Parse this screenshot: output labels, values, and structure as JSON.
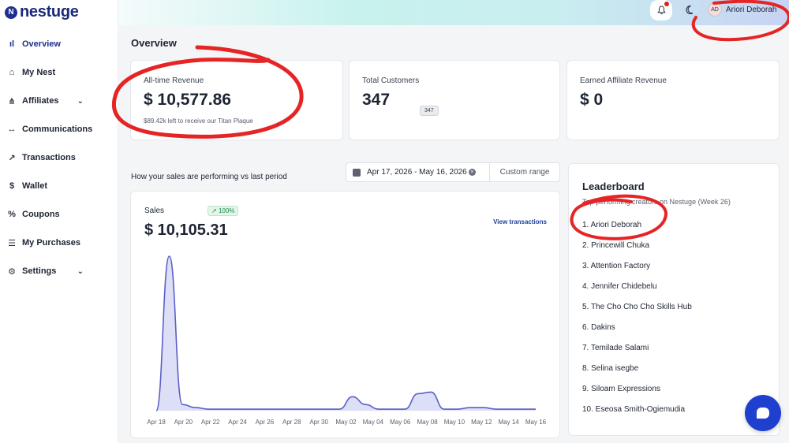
{
  "brand": {
    "logo_mark": "N",
    "name": "nestuge"
  },
  "nav": [
    {
      "label": "Overview",
      "icon": "bar-chart-icon",
      "glyph": "ıl",
      "active": true,
      "chevron": false
    },
    {
      "label": "My Nest",
      "icon": "nest-icon",
      "glyph": "⌂",
      "active": false,
      "chevron": false
    },
    {
      "label": "Affiliates",
      "icon": "affiliates-icon",
      "glyph": "⋔",
      "active": false,
      "chevron": true
    },
    {
      "label": "Communications",
      "icon": "arrows-icon",
      "glyph": "↔",
      "active": false,
      "chevron": false
    },
    {
      "label": "Transactions",
      "icon": "trend-icon",
      "glyph": "↗",
      "active": false,
      "chevron": false
    },
    {
      "label": "Wallet",
      "icon": "wallet-icon",
      "glyph": "$",
      "active": false,
      "chevron": false
    },
    {
      "label": "Coupons",
      "icon": "percent-icon",
      "glyph": "%",
      "active": false,
      "chevron": false
    },
    {
      "label": "My Purchases",
      "icon": "list-icon",
      "glyph": "☰",
      "active": false,
      "chevron": false
    },
    {
      "label": "Settings",
      "icon": "gear-icon",
      "glyph": "⚙",
      "active": false,
      "chevron": true
    }
  ],
  "header": {
    "user_name": "Ariori Deborah",
    "avatar_initials": "AD"
  },
  "page": {
    "title": "Overview"
  },
  "stats": {
    "revenue": {
      "label": "All-time Revenue",
      "value": "$ 10,577.86",
      "sub": "$89.42k left to receive our Titan Plaque"
    },
    "customers": {
      "label": "Total Customers",
      "value": "347",
      "badge": "347"
    },
    "affiliate": {
      "label": "Earned Affiliate Revenue",
      "value": "$ 0"
    }
  },
  "performance": {
    "text": "How your sales are performing vs last period",
    "date_range": "Apr 17, 2026 - May 16, 2026",
    "custom_range": "Custom range"
  },
  "sales_card": {
    "label": "Sales",
    "change": "100%",
    "value": "$ 10,105.31",
    "view_link": "View transactions"
  },
  "chart_data": {
    "type": "area",
    "ticks": [
      "Apr 18",
      "Apr 20",
      "Apr 22",
      "Apr 24",
      "Apr 26",
      "Apr 28",
      "Apr 30",
      "May 02",
      "May 04",
      "May 06",
      "May 08",
      "May 10",
      "May 12",
      "May 14",
      "May 16"
    ],
    "values": [
      0,
      1,
      0.04,
      0.02,
      0.01,
      0.01,
      0.01,
      0.01,
      0.01,
      0.01,
      0.01,
      0.01,
      0.01,
      0.01,
      0.01,
      0.09,
      0.04,
      0.01,
      0.01,
      0.01,
      0.11,
      0.12,
      0.01,
      0.01,
      0.02,
      0.02,
      0.01,
      0.01,
      0.01,
      0.01
    ],
    "ymax": 1,
    "color": "#5b5fc7",
    "fill": "#cfd1f4"
  },
  "leaderboard": {
    "title": "Leaderboard",
    "subtitle": "Top-performing creators on Nestuge (Week 26)",
    "items": [
      "1. Ariori Deborah",
      "2. Princewill Chuka",
      "3. Attention Factory",
      "4. Jennifer Chidebelu",
      "5. The Cho Cho Cho Skills Hub",
      "6. Dakins",
      "7. Temilade Salami",
      "8. Selina isegbe",
      "9. Siloam Expressions",
      "10. Eseosa Smith-Ogiemudia"
    ]
  }
}
